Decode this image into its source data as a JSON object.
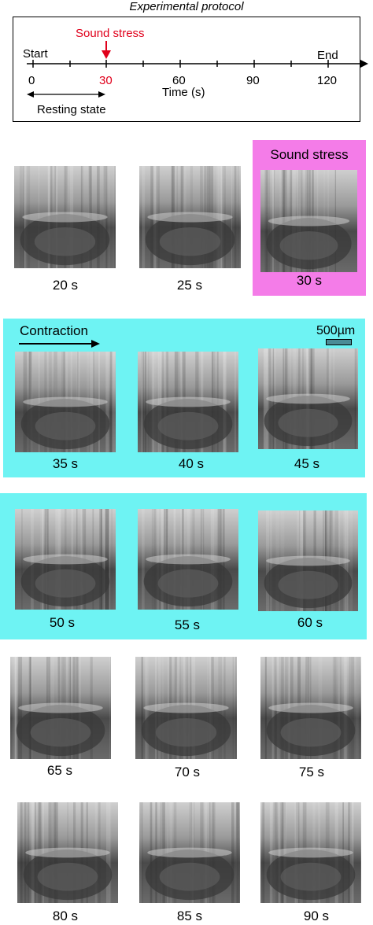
{
  "protocol": {
    "title": "Experimental protocol",
    "stimulus_label": "Sound stress",
    "start_label": "Start",
    "end_label": "End",
    "ticks": [
      "0",
      "30",
      "60",
      "90",
      "120"
    ],
    "axis_label": "Time (s)",
    "resting_label": "Resting state",
    "stimulus_color": "#e0001b"
  },
  "panels": {
    "sound_stress_label": "Sound stress",
    "contraction_label": "Contraction",
    "scale_bar_label": "500µm",
    "pink_color": "#f47ce8",
    "cyan_color": "#6ef3f3"
  },
  "frames": [
    "20 s",
    "25 s",
    "30 s",
    "35 s",
    "40 s",
    "45 s",
    "50 s",
    "55 s",
    "60 s",
    "65 s",
    "70 s",
    "75 s",
    "80 s",
    "85 s",
    "90 s"
  ]
}
